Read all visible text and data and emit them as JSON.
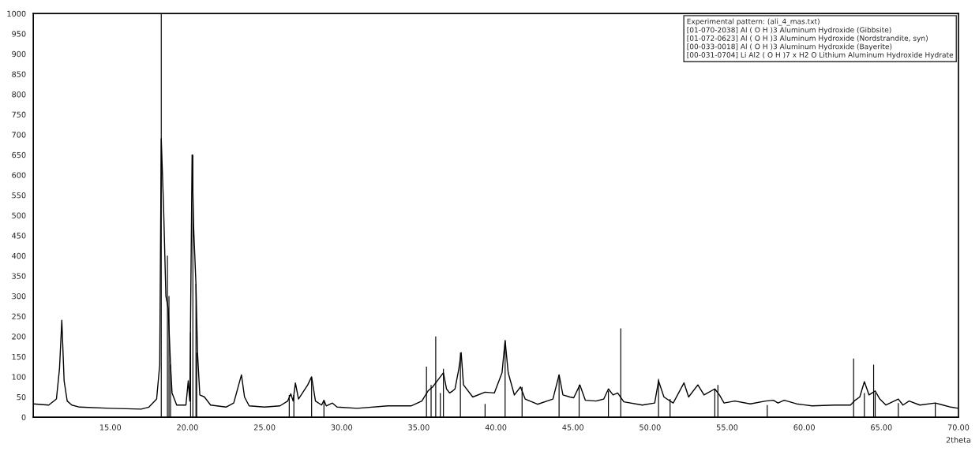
{
  "chart_data": {
    "type": "line",
    "xlabel": "2theta",
    "xlim": [
      10,
      70
    ],
    "xticks": [
      {
        "value": 15,
        "label": "15.00"
      },
      {
        "value": 20,
        "label": "20.00"
      },
      {
        "value": 25,
        "label": "25.00"
      },
      {
        "value": 30,
        "label": "30.00"
      },
      {
        "value": 35,
        "label": "35.00"
      },
      {
        "value": 40,
        "label": "40.00"
      },
      {
        "value": 45,
        "label": "45.00"
      },
      {
        "value": 50,
        "label": "50.00"
      },
      {
        "value": 55,
        "label": "55.00"
      },
      {
        "value": 60,
        "label": "60.00"
      },
      {
        "value": 65,
        "label": "65.00"
      },
      {
        "value": 70,
        "label": "70.00"
      }
    ],
    "ylim": [
      0,
      1000
    ],
    "yticks": [
      0,
      50,
      100,
      150,
      200,
      250,
      300,
      350,
      400,
      450,
      500,
      550,
      600,
      650,
      700,
      750,
      800,
      850,
      900,
      950,
      1000
    ],
    "grid": false,
    "legend": "top right",
    "series": [
      {
        "name": "Experimental pattern: (ali_4_mas.txt)",
        "color": "#000000",
        "x": [
          10,
          11,
          11.5,
          11.7,
          11.85,
          12,
          12.2,
          12.5,
          13,
          15,
          17,
          17.5,
          18,
          18.2,
          18.3,
          18.45,
          18.6,
          18.75,
          18.9,
          19,
          19.3,
          19.9,
          20.05,
          20.15,
          20.3,
          20.4,
          20.55,
          20.65,
          20.8,
          21.1,
          21.5,
          22.5,
          23,
          23.5,
          23.7,
          24,
          25,
          26,
          26.5,
          26.7,
          26.85,
          27,
          27.2,
          27.8,
          28.05,
          28.3,
          28.7,
          28.85,
          29,
          29.4,
          29.7,
          31,
          33,
          34.5,
          35.2,
          35.6,
          35.9,
          36.4,
          36.6,
          36.8,
          37,
          37.2,
          37.35,
          37.6,
          37.75,
          37.9,
          38.5,
          39.3,
          39.9,
          40.1,
          40.4,
          40.6,
          40.8,
          41.2,
          41.6,
          41.9,
          42.7,
          43.7,
          44.1,
          44.35,
          44.8,
          45.05,
          45.45,
          45.8,
          46.5,
          47,
          47.3,
          47.6,
          47.9,
          48.3,
          49.5,
          50.3,
          50.55,
          50.9,
          51.5,
          52.2,
          52.5,
          53.1,
          53.5,
          54.2,
          54.5,
          54.8,
          55.5,
          56.5,
          57.5,
          58,
          58.3,
          58.7,
          59.5,
          60.5,
          62,
          63,
          63.3,
          63.6,
          63.9,
          64.2,
          64.6,
          64.9,
          65.3,
          66.1,
          66.4,
          66.8,
          67.5,
          68.5,
          69,
          69.5,
          70
        ],
        "values": [
          33,
          30,
          45,
          120,
          240,
          90,
          40,
          30,
          25,
          22,
          20,
          25,
          45,
          130,
          690,
          520,
          300,
          270,
          130,
          60,
          30,
          30,
          90,
          40,
          650,
          470,
          330,
          160,
          55,
          50,
          30,
          25,
          35,
          105,
          50,
          28,
          25,
          28,
          40,
          58,
          40,
          85,
          45,
          80,
          100,
          40,
          30,
          42,
          28,
          35,
          25,
          22,
          28,
          28,
          40,
          65,
          75,
          100,
          110,
          70,
          60,
          65,
          70,
          120,
          160,
          80,
          50,
          62,
          60,
          80,
          110,
          190,
          110,
          55,
          75,
          45,
          32,
          45,
          105,
          55,
          50,
          48,
          80,
          42,
          40,
          45,
          70,
          55,
          60,
          38,
          30,
          35,
          90,
          50,
          35,
          85,
          50,
          80,
          55,
          70,
          55,
          35,
          40,
          33,
          40,
          42,
          35,
          42,
          33,
          28,
          30,
          30,
          42,
          50,
          88,
          55,
          65,
          45,
          30,
          45,
          30,
          40,
          30,
          35,
          30,
          25,
          22
        ]
      },
      {
        "type": "bar",
        "color": "#000000",
        "x": [
          18.3,
          18.7,
          18.8,
          18.9,
          20.2,
          20.35,
          20.55,
          20.6,
          26.6,
          26.9,
          28.05,
          28.85,
          35.5,
          35.8,
          36.1,
          36.4,
          36.6,
          37.7,
          39.3,
          40.6,
          41.7,
          44.1,
          45.4,
          47.3,
          48.1,
          50.55,
          51.3,
          54.2,
          54.4,
          57.6,
          63.2,
          63.9,
          64.5,
          64.6,
          66.1,
          68.5
        ],
        "values": [
          1000,
          400,
          300,
          130,
          210,
          650,
          330,
          160,
          55,
          55,
          95,
          40,
          125,
          80,
          200,
          60,
          120,
          160,
          33,
          190,
          75,
          105,
          80,
          65,
          220,
          95,
          45,
          70,
          80,
          30,
          145,
          60,
          130,
          60,
          35,
          35
        ]
      }
    ],
    "annotations": [
      "[01-070-2038] Al ( O H )3 Aluminum Hydroxide (Gibbsite)",
      "[01-072-0623] Al ( O H )3 Aluminum Hydroxide (Nordstrandite, syn)",
      "[00-033-0018] Al ( O H )3 Aluminum Hydroxide (Bayerite)",
      "[00-031-0704] Li Al2 ( O H )7 x H2 O Lithium Aluminum Hydroxide Hydrate"
    ]
  }
}
